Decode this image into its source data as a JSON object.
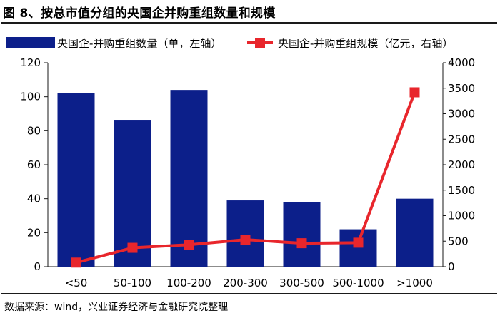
{
  "figure": {
    "title": "图 8、按总市值分组的央国企并购重组数量和规模",
    "source": "数据来源：wind，兴业证券经济与金融研究院整理"
  },
  "colors": {
    "bar": "#0c1f8a",
    "line": "#e8262c",
    "axis": "#1a1a1a"
  },
  "chart_data": {
    "type": "bar+line",
    "categories": [
      "<50",
      "50-100",
      "100-200",
      "200-300",
      "300-500",
      "500-1000",
      ">1000"
    ],
    "series": [
      {
        "name": "央国企-并购重组数量（单，左轴）",
        "type": "bar",
        "axis": "left",
        "values": [
          102,
          86,
          104,
          39,
          38,
          22,
          40
        ]
      },
      {
        "name": "央国企-并购重组规模（亿元，右轴）",
        "type": "line",
        "axis": "right",
        "values": [
          80,
          370,
          430,
          530,
          460,
          470,
          3420
        ]
      }
    ],
    "left_axis": {
      "min": 0,
      "max": 120,
      "ticks": [
        "0",
        "20",
        "40",
        "60",
        "80",
        "100",
        "120"
      ]
    },
    "right_axis": {
      "min": 0,
      "max": 4000,
      "ticks": [
        "0",
        "500",
        "1000",
        "1500",
        "2000",
        "2500",
        "3000",
        "3500",
        "4000"
      ]
    },
    "grid": false,
    "legend_position": "top"
  }
}
